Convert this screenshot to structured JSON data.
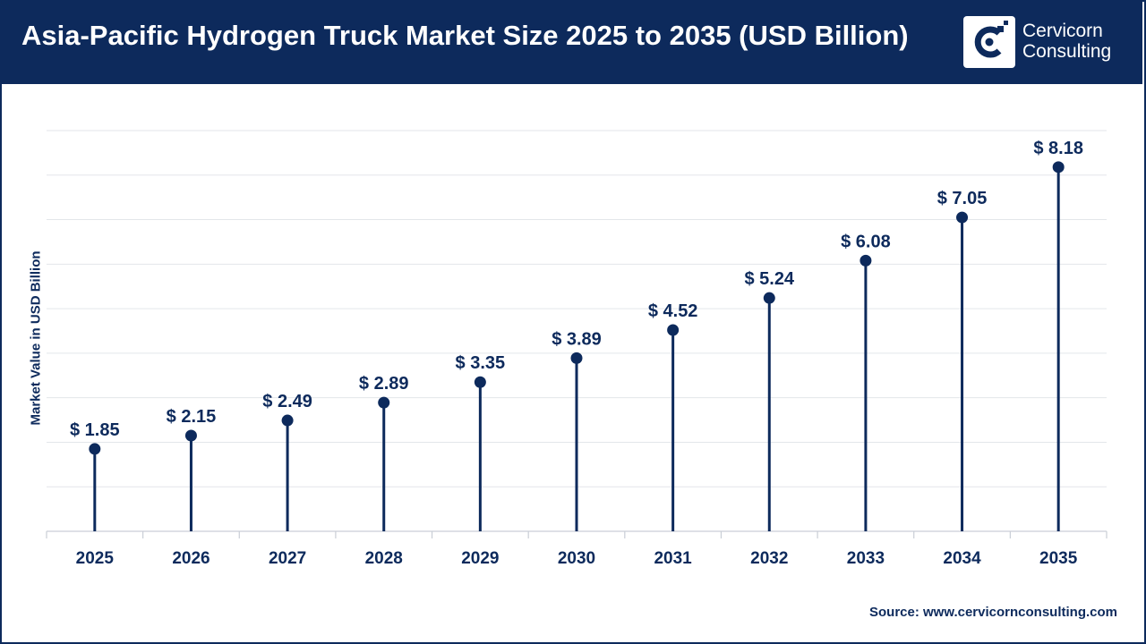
{
  "header": {
    "title": "Asia-Pacific Hydrogen Truck Market Size 2025 to 2035 (USD Billion)",
    "logo_line1": "Cervicorn",
    "logo_line2": "Consulting"
  },
  "source": "Source: www.cervicornconsulting.com",
  "colors": {
    "brand": "#0d2a5c",
    "grid": "#e3e6ea",
    "axis": "#c9ced6",
    "background": "#ffffff"
  },
  "chart_data": {
    "type": "lollipop",
    "title": "Asia-Pacific Hydrogen Truck Market Size 2025 to 2035 (USD Billion)",
    "xlabel": "",
    "ylabel": "Market Value in USD Billion",
    "categories": [
      "2025",
      "2026",
      "2027",
      "2028",
      "2029",
      "2030",
      "2031",
      "2032",
      "2033",
      "2034",
      "2035"
    ],
    "values": [
      1.85,
      2.15,
      2.49,
      2.89,
      3.35,
      3.89,
      4.52,
      5.24,
      6.08,
      7.05,
      8.18
    ],
    "value_labels": [
      "$ 1.85",
      "$ 2.15",
      "$ 2.49",
      "$ 2.89",
      "$ 3.35",
      "$ 3.89",
      "$ 4.52",
      "$ 5.24",
      "$ 6.08",
      "$ 7.05",
      "$ 8.18"
    ],
    "ylim": [
      0,
      9
    ],
    "grid": true,
    "legend": "none"
  }
}
